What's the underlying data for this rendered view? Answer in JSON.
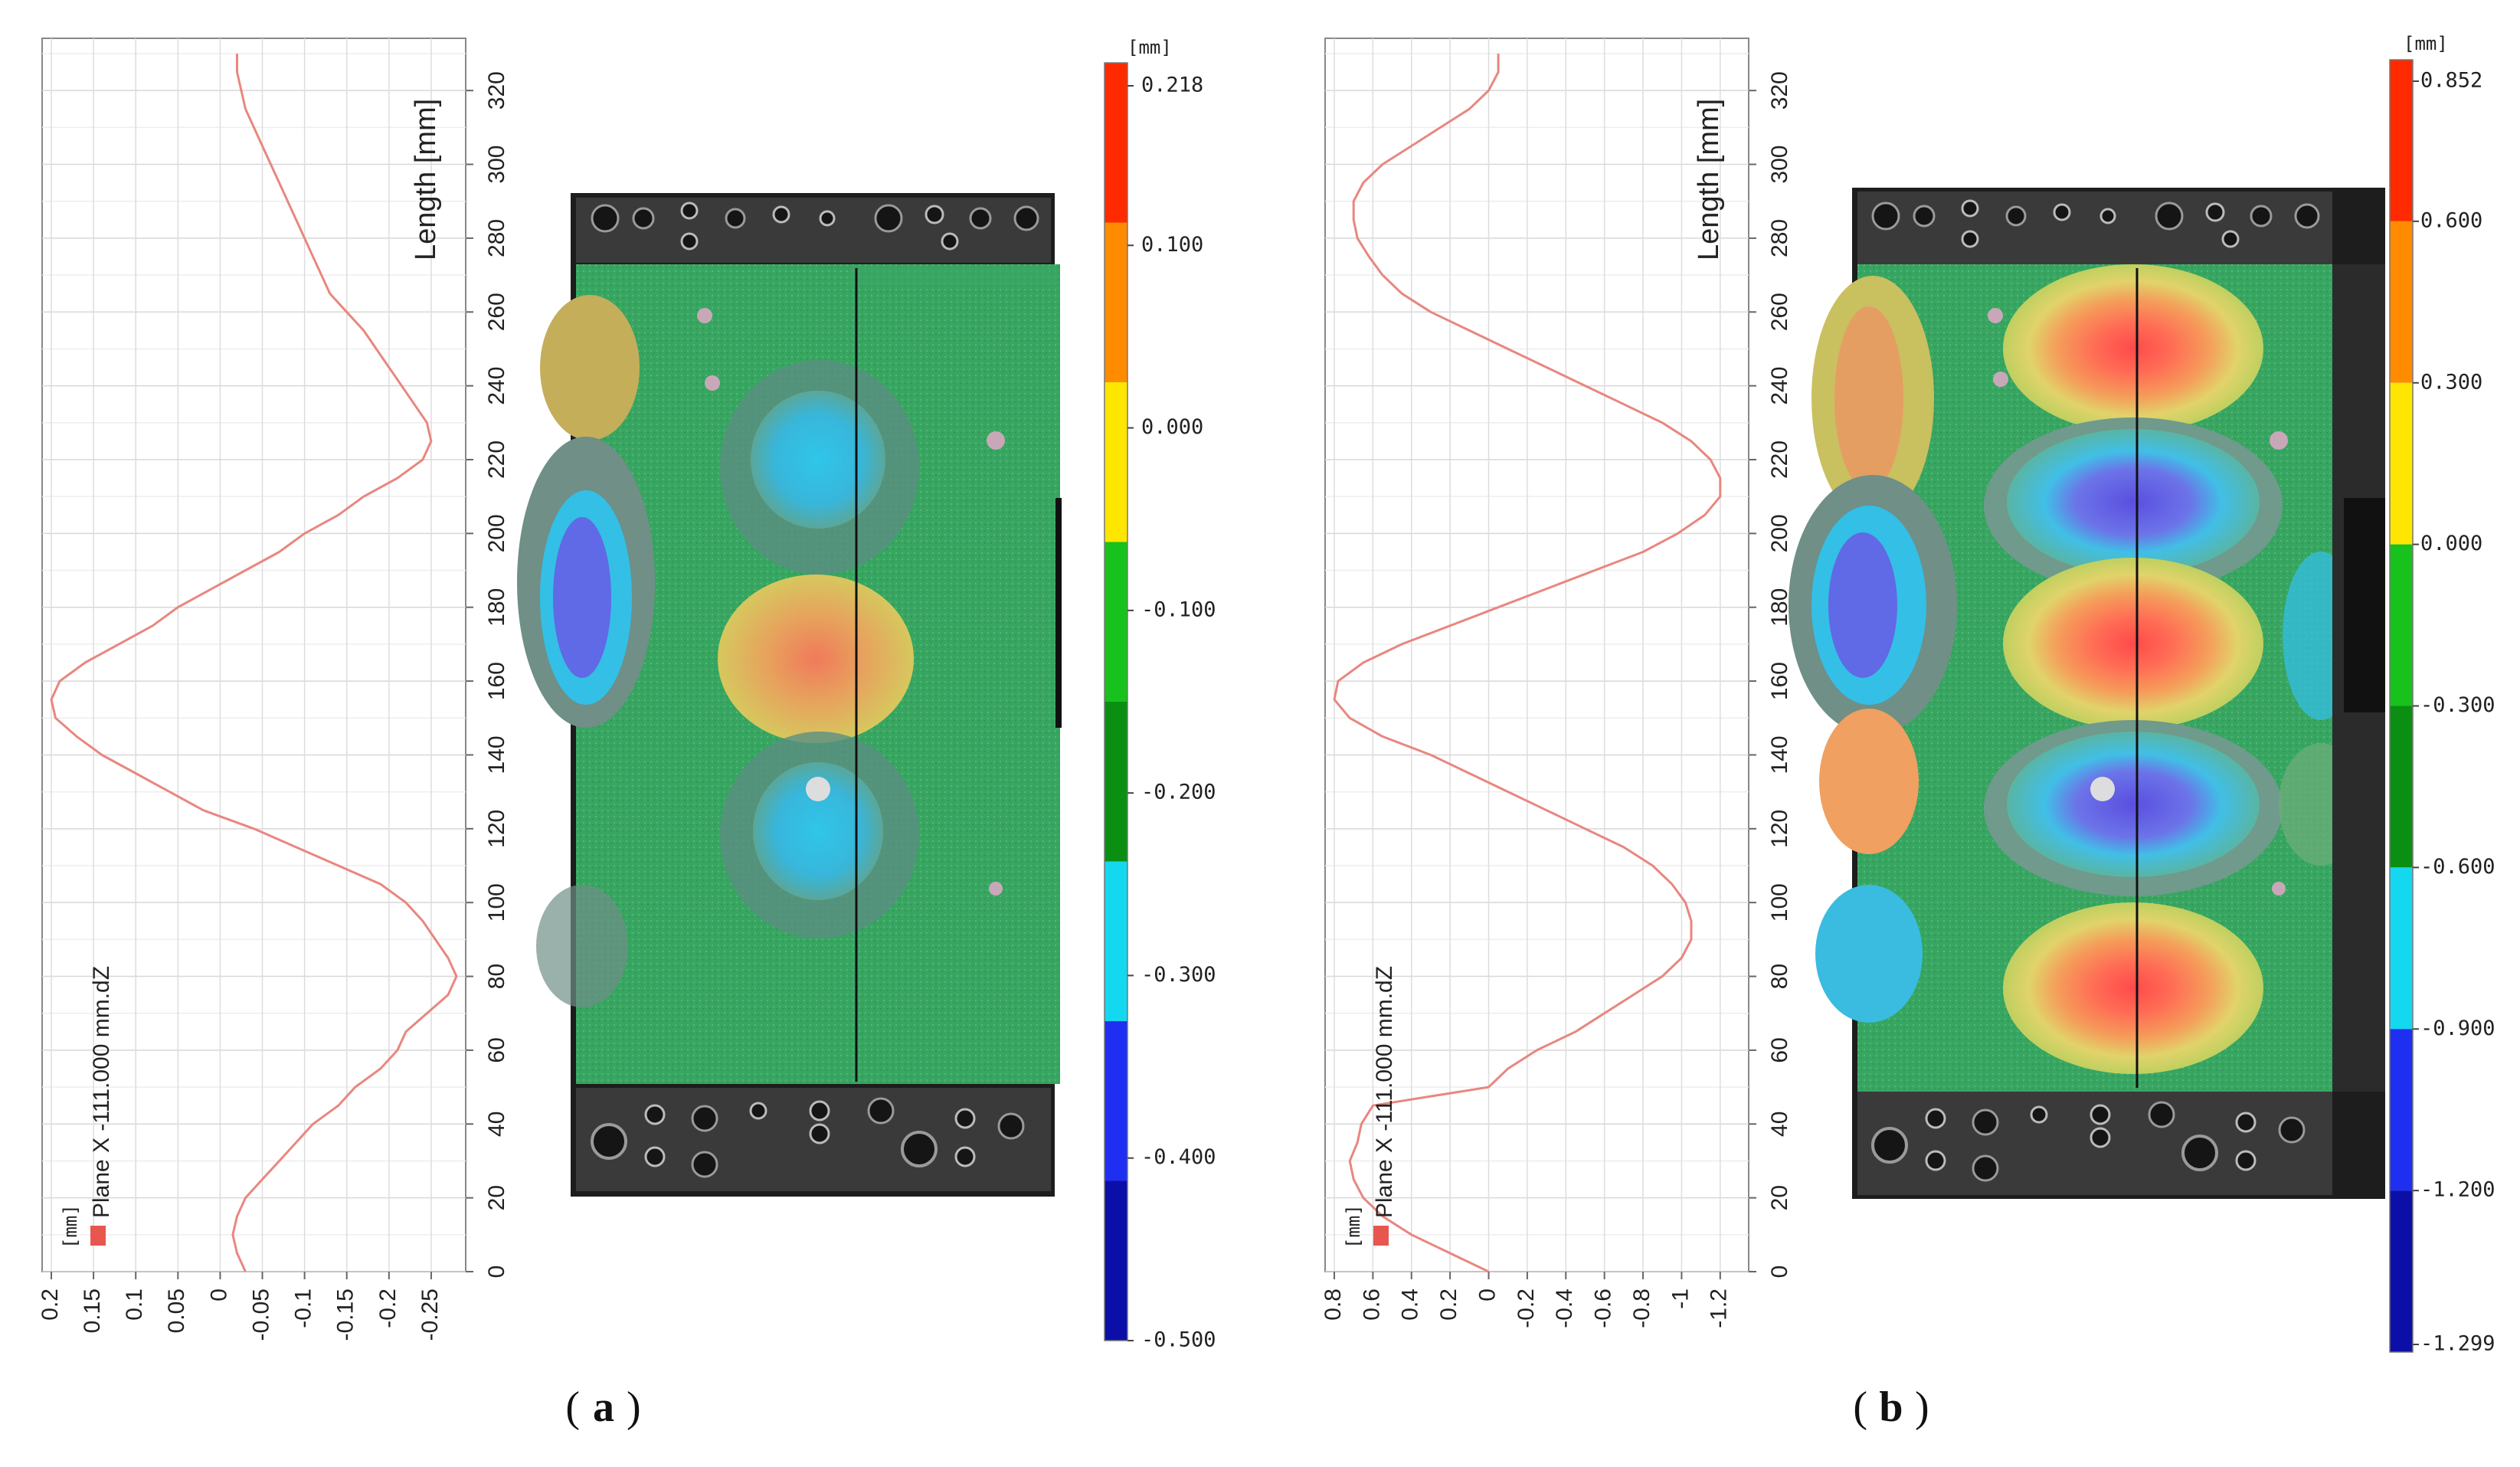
{
  "panels": [
    {
      "caption_letter": "a",
      "chart_data": {
        "type": "line",
        "xlabel": "Length [mm]",
        "yunit": "[mm]",
        "series": [
          {
            "name": "Plane X -111.000 mm.dZ",
            "x": [
              0,
              5,
              10,
              15,
              20,
              25,
              30,
              35,
              40,
              45,
              50,
              55,
              60,
              65,
              70,
              75,
              80,
              85,
              90,
              95,
              100,
              105,
              110,
              115,
              120,
              125,
              130,
              135,
              140,
              145,
              150,
              155,
              160,
              165,
              170,
              175,
              180,
              185,
              190,
              195,
              200,
              205,
              210,
              215,
              220,
              225,
              230,
              235,
              240,
              245,
              250,
              255,
              260,
              265,
              270,
              275,
              280,
              285,
              290,
              295,
              300,
              305,
              310,
              315,
              320,
              325,
              330
            ],
            "y": [
              -0.03,
              -0.02,
              -0.015,
              -0.02,
              -0.03,
              -0.05,
              -0.07,
              -0.09,
              -0.11,
              -0.14,
              -0.16,
              -0.19,
              -0.21,
              -0.22,
              -0.245,
              -0.27,
              -0.28,
              -0.27,
              -0.255,
              -0.24,
              -0.22,
              -0.19,
              -0.14,
              -0.09,
              -0.04,
              0.02,
              0.06,
              0.1,
              0.14,
              0.17,
              0.195,
              0.2,
              0.19,
              0.16,
              0.12,
              0.08,
              0.05,
              0.01,
              -0.03,
              -0.07,
              -0.1,
              -0.14,
              -0.17,
              -0.21,
              -0.24,
              -0.25,
              -0.245,
              -0.23,
              -0.215,
              -0.2,
              -0.185,
              -0.17,
              -0.15,
              -0.13,
              -0.12,
              -0.11,
              -0.1,
              -0.09,
              -0.08,
              -0.07,
              -0.06,
              -0.05,
              -0.04,
              -0.03,
              -0.025,
              -0.02,
              -0.02
            ]
          }
        ],
        "xlim": [
          0,
          330
        ],
        "ylim": [
          0.2,
          -0.28
        ],
        "xticks": [
          "0",
          "20",
          "40",
          "60",
          "80",
          "100",
          "120",
          "140",
          "160",
          "180",
          "200",
          "220",
          "240",
          "260",
          "280",
          "300",
          "320"
        ],
        "yticks": [
          "0.2",
          "0.15",
          "0.1",
          "0.05",
          "0",
          "-0.05",
          "-0.1",
          "-0.15",
          "-0.2",
          "-0.25"
        ],
        "grid": true,
        "colors": {
          "line": "#e8877f"
        }
      },
      "colorbar": {
        "unit": "[mm]",
        "labels": [
          "0.218",
          "0.100",
          "0.000",
          "-0.100",
          "-0.200",
          "-0.300",
          "-0.400",
          "-0.500"
        ],
        "colors": [
          "#ff2a00",
          "#ff8c00",
          "#ffe600",
          "#17c21c",
          "#0a8f12",
          "#14d8ef",
          "#1f2ff2",
          "#0b0fa8"
        ]
      }
    },
    {
      "caption_letter": "b",
      "chart_data": {
        "type": "line",
        "xlabel": "Length [mm]",
        "yunit": "[mm]",
        "series": [
          {
            "name": "Plane X -111.000 mm.dZ",
            "x": [
              0,
              5,
              10,
              15,
              20,
              25,
              30,
              35,
              40,
              45,
              50,
              55,
              60,
              65,
              70,
              75,
              80,
              85,
              90,
              95,
              100,
              105,
              110,
              115,
              120,
              125,
              130,
              135,
              140,
              145,
              150,
              155,
              160,
              165,
              170,
              175,
              180,
              185,
              190,
              195,
              200,
              205,
              210,
              215,
              220,
              225,
              230,
              235,
              240,
              245,
              250,
              255,
              260,
              265,
              270,
              275,
              280,
              285,
              290,
              295,
              300,
              305,
              310,
              315,
              320,
              325,
              330
            ],
            "y": [
              0.0,
              0.2,
              0.4,
              0.55,
              0.65,
              0.7,
              0.72,
              0.68,
              0.66,
              0.6,
              0.0,
              -0.1,
              -0.25,
              -0.45,
              -0.6,
              -0.75,
              -0.9,
              -1.0,
              -1.05,
              -1.05,
              -1.02,
              -0.95,
              -0.85,
              -0.7,
              -0.5,
              -0.3,
              -0.1,
              0.1,
              0.3,
              0.55,
              0.72,
              0.8,
              0.78,
              0.65,
              0.45,
              0.2,
              -0.05,
              -0.3,
              -0.55,
              -0.8,
              -0.98,
              -1.12,
              -1.2,
              -1.2,
              -1.15,
              -1.05,
              -0.9,
              -0.7,
              -0.5,
              -0.3,
              -0.1,
              0.1,
              0.3,
              0.45,
              0.55,
              0.62,
              0.68,
              0.7,
              0.7,
              0.65,
              0.55,
              0.4,
              0.25,
              0.1,
              0.0,
              -0.05,
              -0.05
            ]
          }
        ],
        "xlim": [
          0,
          330
        ],
        "ylim": [
          0.8,
          -1.3
        ],
        "xticks": [
          "0",
          "20",
          "40",
          "60",
          "80",
          "100",
          "120",
          "140",
          "160",
          "180",
          "200",
          "220",
          "240",
          "260",
          "280",
          "300",
          "320"
        ],
        "yticks": [
          "0.8",
          "0.6",
          "0.4",
          "0.2",
          "0",
          "-0.2",
          "-0.4",
          "-0.6",
          "-0.8",
          "-1",
          "-1.2"
        ],
        "grid": true,
        "colors": {
          "line": "#e8877f"
        }
      },
      "colorbar": {
        "unit": "[mm]",
        "labels": [
          "0.852",
          "0.600",
          "0.300",
          "0.000",
          "-0.300",
          "-0.600",
          "-0.900",
          "-1.200",
          "-1.299"
        ],
        "colors": [
          "#ff2a00",
          "#ff8c00",
          "#ffe600",
          "#17c21c",
          "#0a8f12",
          "#14d8ef",
          "#1f2ff2",
          "#0b0fa8"
        ]
      }
    }
  ]
}
